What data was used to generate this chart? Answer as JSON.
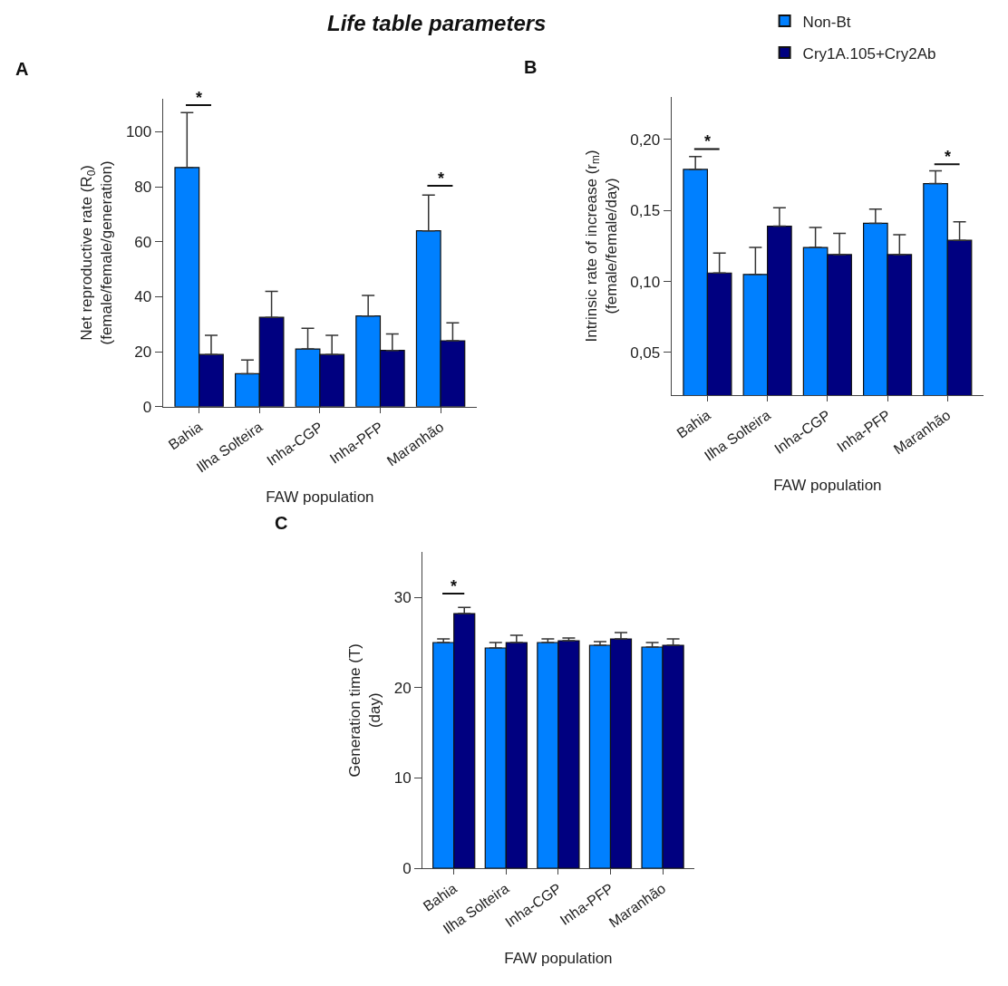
{
  "chart_data": [
    {
      "type": "bar",
      "title": "Life table parameters",
      "legend": "top right",
      "annotations": [
        "A",
        "*",
        "*"
      ],
      "categories": [
        "Bahia",
        "Ilha Solteira",
        "Inha-CGP",
        "Inha-PFP",
        "Maranhão"
      ],
      "xlabel": "FAW population",
      "ylabel": "Net reproductive rate (R$_{0}$)\n(female/female/generation)",
      "ylim": [
        0,
        112
      ],
      "yticks": [
        0,
        20,
        40,
        60,
        80,
        100
      ],
      "series": [
        {
          "name": "Non-Bt",
          "color": "#0080ff",
          "values": [
            87,
            12,
            21,
            33,
            64
          ],
          "errors": [
            [
              87,
              107
            ],
            [
              12,
              17
            ],
            [
              21,
              28.5
            ],
            [
              33,
              40.5
            ],
            [
              64,
              77
            ]
          ]
        },
        {
          "name": "Cry1A.105+Cry2Ab",
          "color": "#000080",
          "values": [
            19,
            32.5,
            19,
            20.5,
            24
          ],
          "errors": [
            [
              19,
              26
            ],
            [
              32.5,
              42
            ],
            [
              19,
              26
            ],
            [
              20.5,
              26.5
            ],
            [
              24,
              30.5
            ]
          ]
        }
      ]
    },
    {
      "type": "bar",
      "annotations": [
        "B",
        "*",
        "*"
      ],
      "categories": [
        "Bahia",
        "Ilha Solteira",
        "Inha-CGP",
        "Inha-PFP",
        "Maranhão"
      ],
      "xlabel": "FAW population",
      "ylabel": "Intrinsic rate of increase (r$_{m}$)\n(female/female/day)",
      "ylim": [
        0.02,
        0.23
      ],
      "yticks": [
        {
          "value": 0.05,
          "label": "0,05"
        },
        {
          "value": 0.1,
          "label": "0,10"
        },
        {
          "value": 0.15,
          "label": "0,15"
        },
        {
          "value": 0.2,
          "label": "0,20"
        }
      ],
      "series": [
        {
          "color": "#0080ff",
          "values": [
            0.179,
            0.105,
            0.124,
            0.141,
            0.169
          ],
          "errors": [
            [
              0.179,
              0.188
            ],
            [
              0.105,
              0.124
            ],
            [
              0.124,
              0.138
            ],
            [
              0.141,
              0.151
            ],
            [
              0.169,
              0.178
            ]
          ]
        },
        {
          "color": "#000080",
          "values": [
            0.106,
            0.139,
            0.119,
            0.119,
            0.129
          ],
          "errors": [
            [
              0.106,
              0.12
            ],
            [
              0.139,
              0.152
            ],
            [
              0.119,
              0.134
            ],
            [
              0.119,
              0.133
            ],
            [
              0.129,
              0.142
            ]
          ]
        }
      ]
    },
    {
      "type": "bar",
      "annotations": [
        "C",
        "*"
      ],
      "categories": [
        "Bahia",
        "Ilha Solteira",
        "Inha-CGP",
        "Inha-PFP",
        "Maranhão"
      ],
      "xlabel": "FAW population",
      "ylabel": "Generation time (T)\n(day)",
      "ylim": [
        0,
        35
      ],
      "yticks": [
        0,
        10,
        20,
        30
      ],
      "series": [
        {
          "color": "#0080ff",
          "values": [
            25.0,
            24.4,
            25.0,
            24.7,
            24.5
          ],
          "errors": [
            [
              25.0,
              25.4
            ],
            [
              24.4,
              25.0
            ],
            [
              25.0,
              25.4
            ],
            [
              24.7,
              25.1
            ],
            [
              24.5,
              25.0
            ]
          ]
        },
        {
          "color": "#000080",
          "values": [
            28.2,
            25.0,
            25.2,
            25.4,
            24.7
          ],
          "errors": [
            [
              28.2,
              28.9
            ],
            [
              25.0,
              25.8
            ],
            [
              25.2,
              25.5
            ],
            [
              25.4,
              26.1
            ],
            [
              24.7,
              25.4
            ]
          ]
        }
      ]
    }
  ]
}
